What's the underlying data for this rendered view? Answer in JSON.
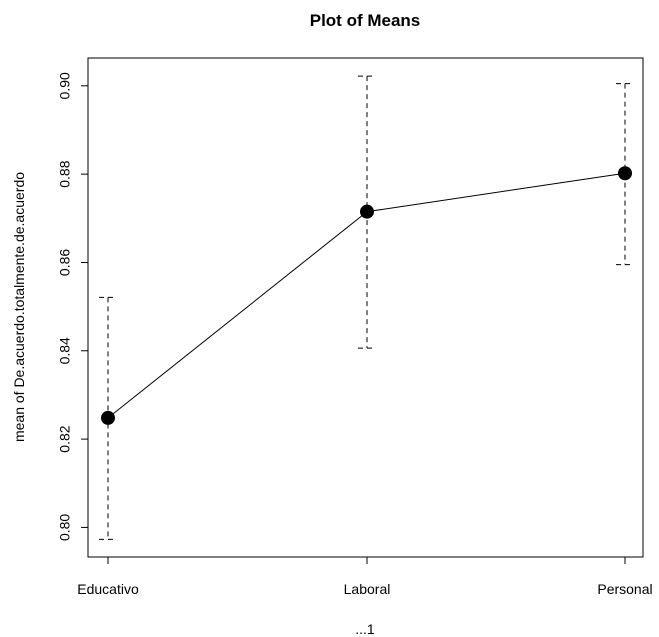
{
  "chart_data": {
    "type": "line",
    "title": "Plot of Means",
    "xlabel": "...1",
    "ylabel": "mean of De.acuerdo.totalmente.de.acuerdo",
    "categories": [
      "Educativo",
      "Laboral",
      "Personal"
    ],
    "series": [
      {
        "values": [
          0.8248,
          0.8715,
          0.8802
        ],
        "error_low": [
          0.7973,
          0.8406,
          0.8595
        ],
        "error_high": [
          0.8521,
          0.9022,
          0.9005
        ]
      }
    ],
    "yticks": [
      0.8,
      0.82,
      0.84,
      0.86,
      0.88,
      0.9
    ],
    "ytick_labels": [
      "0.80",
      "0.82",
      "0.84",
      "0.86",
      "0.88",
      "0.90"
    ],
    "ylim": [
      0.7933,
      0.9063
    ],
    "grid": false,
    "marker_color": "#000000",
    "line_color": "#000000",
    "errorbar_style": "dashed"
  }
}
